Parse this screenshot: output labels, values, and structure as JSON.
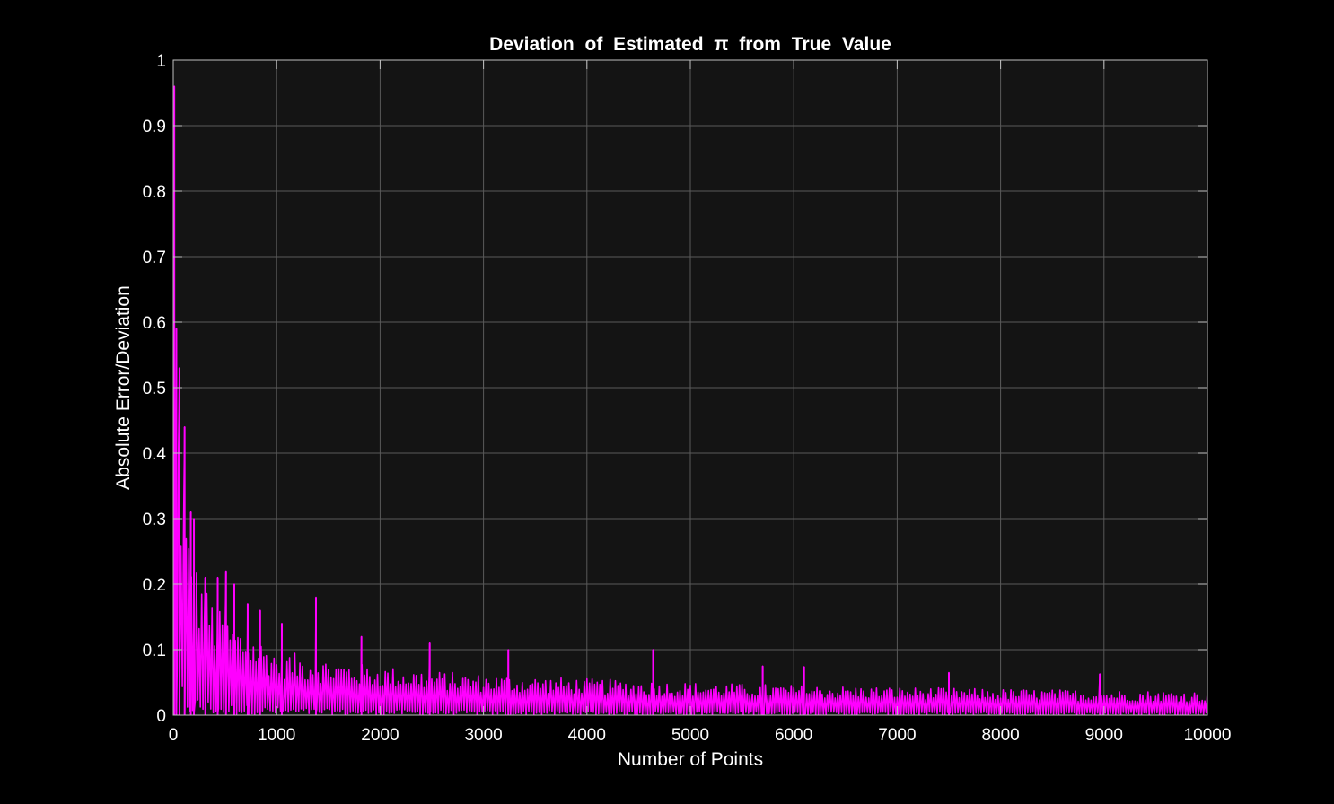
{
  "chart_data": {
    "type": "line",
    "title": "Deviation of Estimated π from True Value",
    "xlabel": "Number of Points",
    "ylabel": "Absolute Error/Deviation",
    "xlim": [
      0,
      10000
    ],
    "ylim": [
      0,
      1
    ],
    "xticks": [
      0,
      1000,
      2000,
      3000,
      4000,
      5000,
      6000,
      7000,
      8000,
      9000,
      10000
    ],
    "xtick_labels": [
      "0",
      "1000",
      "2000",
      "3000",
      "4000",
      "5000",
      "6000",
      "7000",
      "8000",
      "9000",
      "10000"
    ],
    "yticks": [
      0,
      0.1,
      0.2,
      0.3,
      0.4,
      0.5,
      0.6,
      0.7,
      0.8,
      0.9,
      1
    ],
    "ytick_labels": [
      "0",
      "0.1",
      "0.2",
      "0.3",
      "0.4",
      "0.5",
      "0.6",
      "0.7",
      "0.8",
      "0.9",
      "1"
    ],
    "grid": true,
    "legend": "none",
    "series": [
      {
        "line_color": "#ff00ff",
        "x_step": 25,
        "envelope": {
          "x": [
            0,
            20,
            40,
            60,
            80,
            100,
            150,
            200,
            300,
            400,
            500,
            700,
            1000,
            1500,
            2000,
            2500,
            3000,
            4000,
            5000,
            6000,
            7000,
            8000,
            9000,
            10000
          ],
          "upper": [
            0.96,
            0.6,
            0.5,
            0.45,
            0.4,
            0.33,
            0.28,
            0.24,
            0.2,
            0.17,
            0.15,
            0.13,
            0.1,
            0.085,
            0.075,
            0.068,
            0.062,
            0.056,
            0.05,
            0.046,
            0.043,
            0.04,
            0.038,
            0.036
          ]
        },
        "peaks": [
          {
            "x": 10,
            "y": 0.96
          },
          {
            "x": 30,
            "y": 0.59
          },
          {
            "x": 60,
            "y": 0.53
          },
          {
            "x": 110,
            "y": 0.44
          },
          {
            "x": 170,
            "y": 0.31
          },
          {
            "x": 200,
            "y": 0.3
          },
          {
            "x": 310,
            "y": 0.21
          },
          {
            "x": 430,
            "y": 0.21
          },
          {
            "x": 510,
            "y": 0.22
          },
          {
            "x": 590,
            "y": 0.2
          },
          {
            "x": 720,
            "y": 0.17
          },
          {
            "x": 840,
            "y": 0.16
          },
          {
            "x": 1050,
            "y": 0.14
          },
          {
            "x": 1380,
            "y": 0.18
          },
          {
            "x": 1820,
            "y": 0.12
          },
          {
            "x": 2480,
            "y": 0.11
          },
          {
            "x": 3240,
            "y": 0.1
          },
          {
            "x": 4640,
            "y": 0.1
          },
          {
            "x": 5700,
            "y": 0.075
          },
          {
            "x": 6100,
            "y": 0.074
          },
          {
            "x": 7500,
            "y": 0.065
          },
          {
            "x": 8960,
            "y": 0.063
          }
        ]
      }
    ]
  },
  "style": {
    "figure_background": "#000000",
    "axes_background": "#141414",
    "axes_edge_color": "#c0c0c0",
    "grid_color": "#5a5a5a",
    "text_color": "#ffffff"
  }
}
